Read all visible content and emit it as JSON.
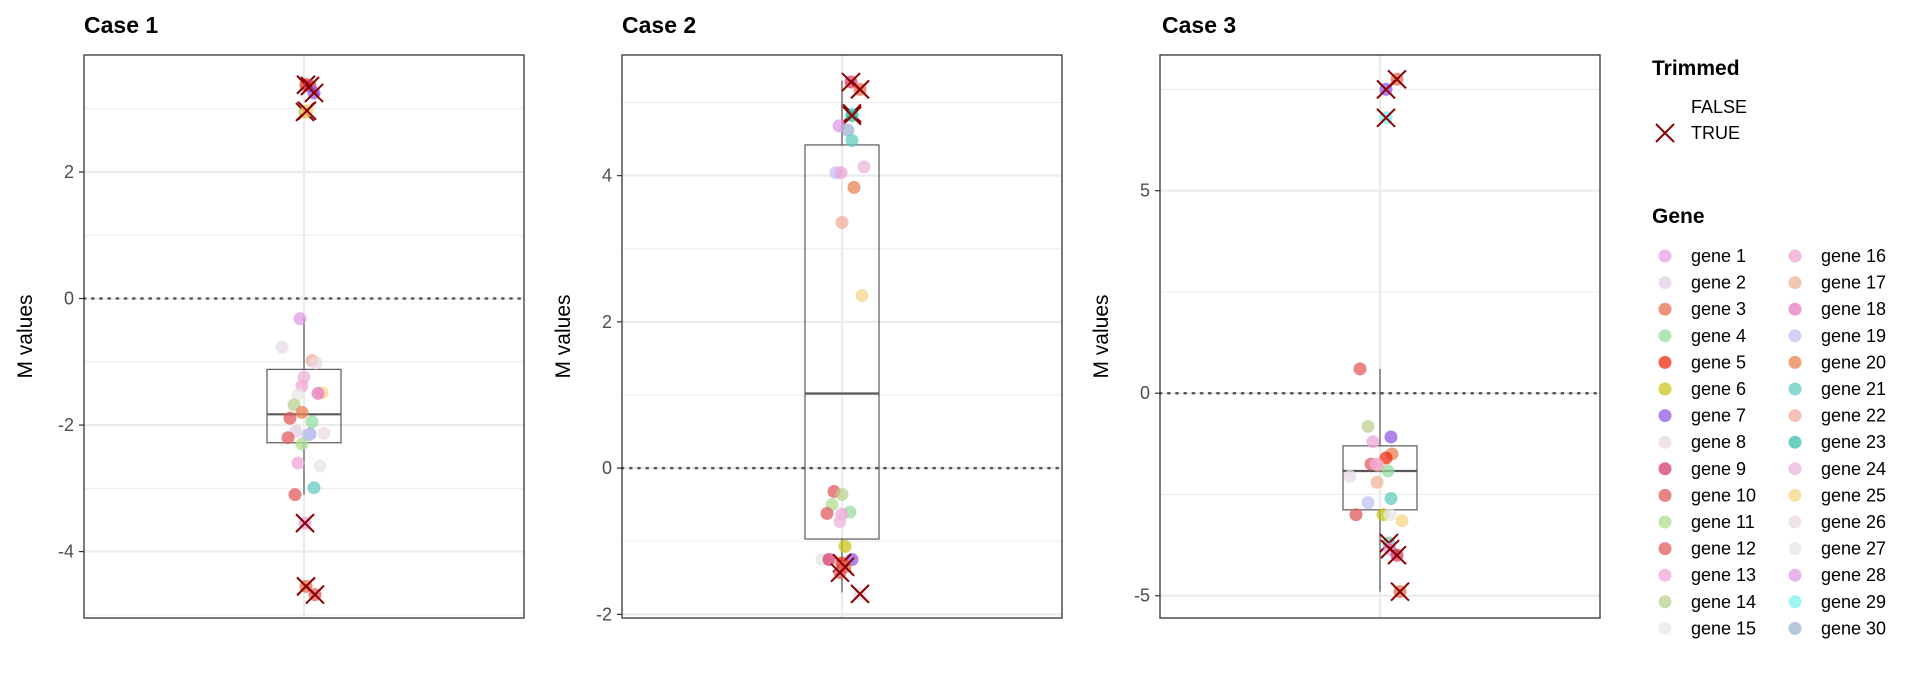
{
  "chart_data": [
    {
      "type": "boxplot",
      "title": "Case 1",
      "ylabel": "M values",
      "ylim": [
        -5.05,
        3.85
      ],
      "yticks": [
        -4,
        -2,
        0,
        2
      ],
      "tick_labels": [
        "-4",
        "-2",
        "0",
        "2"
      ],
      "hline": 0,
      "box": {
        "lower_whisker": -3.1,
        "q1": -2.28,
        "median": -1.83,
        "q3": -1.12,
        "upper_whisker": -0.3
      },
      "points": [
        {
          "gene": "gene 5",
          "jitter": 0.02,
          "y": 3.38,
          "trimmed": true
        },
        {
          "gene": "gene 9",
          "jitter": 0.06,
          "y": 3.36,
          "trimmed": true
        },
        {
          "gene": "gene 7",
          "jitter": 0.1,
          "y": 3.25,
          "trimmed": true
        },
        {
          "gene": "gene 6",
          "jitter": 0.01,
          "y": 2.95,
          "trimmed": true
        },
        {
          "gene": "gene 25",
          "jitter": 0.03,
          "y": 2.97,
          "trimmed": true
        },
        {
          "gene": "gene 28",
          "jitter": -0.04,
          "y": -0.32,
          "trimmed": false
        },
        {
          "gene": "gene 8",
          "jitter": -0.22,
          "y": -0.77,
          "trimmed": false
        },
        {
          "gene": "gene 22",
          "jitter": 0.08,
          "y": -0.98,
          "trimmed": false
        },
        {
          "gene": "gene 26",
          "jitter": 0.12,
          "y": -1.02,
          "trimmed": false
        },
        {
          "gene": "gene 24",
          "jitter": 0.0,
          "y": -1.24,
          "trimmed": false
        },
        {
          "gene": "gene 13",
          "jitter": -0.02,
          "y": -1.38,
          "trimmed": false
        },
        {
          "gene": "gene 25",
          "jitter": 0.18,
          "y": -1.49,
          "trimmed": false
        },
        {
          "gene": "gene 18",
          "jitter": 0.14,
          "y": -1.5,
          "trimmed": false
        },
        {
          "gene": "gene 15",
          "jitter": -0.06,
          "y": -1.52,
          "trimmed": false
        },
        {
          "gene": "gene 14",
          "jitter": -0.1,
          "y": -1.68,
          "trimmed": false
        },
        {
          "gene": "gene 20",
          "jitter": -0.02,
          "y": -1.8,
          "trimmed": false
        },
        {
          "gene": "gene 10",
          "jitter": -0.14,
          "y": -1.89,
          "trimmed": false
        },
        {
          "gene": "gene 4",
          "jitter": 0.08,
          "y": -1.95,
          "trimmed": false
        },
        {
          "gene": "gene 30",
          "jitter": 0.06,
          "y": -2.14,
          "trimmed": false
        },
        {
          "gene": "gene 2",
          "jitter": -0.08,
          "y": -2.1,
          "trimmed": false
        },
        {
          "gene": "gene 26",
          "jitter": 0.2,
          "y": -2.13,
          "trimmed": false
        },
        {
          "gene": "gene 19",
          "jitter": 0.04,
          "y": -2.16,
          "trimmed": false
        },
        {
          "gene": "gene 12",
          "jitter": -0.16,
          "y": -2.2,
          "trimmed": false
        },
        {
          "gene": "gene 11",
          "jitter": -0.02,
          "y": -2.3,
          "trimmed": false
        },
        {
          "gene": "gene 13",
          "jitter": -0.06,
          "y": -2.6,
          "trimmed": false
        },
        {
          "gene": "gene 27",
          "jitter": 0.16,
          "y": -2.65,
          "trimmed": false
        },
        {
          "gene": "gene 21",
          "jitter": 0.1,
          "y": -2.99,
          "trimmed": false
        },
        {
          "gene": "gene 10",
          "jitter": -0.09,
          "y": -3.1,
          "trimmed": false
        },
        {
          "gene": "gene 1",
          "jitter": 0.01,
          "y": -3.55,
          "trimmed": true
        },
        {
          "gene": "gene 3",
          "jitter": 0.02,
          "y": -4.55,
          "trimmed": true
        },
        {
          "gene": "gene 12",
          "jitter": 0.11,
          "y": -4.68,
          "trimmed": true
        }
      ]
    },
    {
      "type": "boxplot",
      "title": "Case 2",
      "ylabel": "M values",
      "ylim": [
        -2.05,
        5.65
      ],
      "yticks": [
        -2,
        0,
        2,
        4
      ],
      "tick_labels": [
        "-2",
        "0",
        "2",
        "4"
      ],
      "hline": 0,
      "box": {
        "lower_whisker": -1.7,
        "q1": -0.97,
        "median": 1.02,
        "q3": 4.42,
        "upper_whisker": 5.3
      },
      "points": [
        {
          "gene": "gene 9",
          "jitter": 0.09,
          "y": 5.28,
          "trimmed": true
        },
        {
          "gene": "gene 3",
          "jitter": 0.18,
          "y": 5.18,
          "trimmed": true
        },
        {
          "gene": "gene 29",
          "jitter": 0.1,
          "y": 4.85,
          "trimmed": true
        },
        {
          "gene": "gene 23",
          "jitter": 0.1,
          "y": 4.82,
          "trimmed": true
        },
        {
          "gene": "gene 28",
          "jitter": -0.03,
          "y": 4.68,
          "trimmed": false
        },
        {
          "gene": "gene 30",
          "jitter": 0.06,
          "y": 4.62,
          "trimmed": false
        },
        {
          "gene": "gene 21",
          "jitter": 0.1,
          "y": 4.48,
          "trimmed": false
        },
        {
          "gene": "gene 24",
          "jitter": 0.22,
          "y": 4.12,
          "trimmed": false
        },
        {
          "gene": "gene 19",
          "jitter": -0.06,
          "y": 4.04,
          "trimmed": false
        },
        {
          "gene": "gene 16",
          "jitter": -0.01,
          "y": 4.04,
          "trimmed": false
        },
        {
          "gene": "gene 20",
          "jitter": 0.12,
          "y": 3.84,
          "trimmed": false
        },
        {
          "gene": "gene 22",
          "jitter": 0.0,
          "y": 3.36,
          "trimmed": false
        },
        {
          "gene": "gene 25",
          "jitter": 0.2,
          "y": 2.36,
          "trimmed": false
        },
        {
          "gene": "gene 10",
          "jitter": -0.08,
          "y": -0.32,
          "trimmed": false
        },
        {
          "gene": "gene 14",
          "jitter": 0.0,
          "y": -0.36,
          "trimmed": false
        },
        {
          "gene": "gene 11",
          "jitter": -0.1,
          "y": -0.5,
          "trimmed": false
        },
        {
          "gene": "gene 12",
          "jitter": -0.15,
          "y": -0.62,
          "trimmed": false
        },
        {
          "gene": "gene 4",
          "jitter": 0.08,
          "y": -0.6,
          "trimmed": false
        },
        {
          "gene": "gene 13",
          "jitter": 0.0,
          "y": -0.63,
          "trimmed": false
        },
        {
          "gene": "gene 24",
          "jitter": -0.02,
          "y": -0.73,
          "trimmed": false
        },
        {
          "gene": "gene 6",
          "jitter": 0.03,
          "y": -1.07,
          "trimmed": false
        },
        {
          "gene": "gene 27",
          "jitter": -0.2,
          "y": -1.25,
          "trimmed": false
        },
        {
          "gene": "gene 9",
          "jitter": -0.13,
          "y": -1.25,
          "trimmed": false
        },
        {
          "gene": "gene 7",
          "jitter": 0.1,
          "y": -1.25,
          "trimmed": false
        },
        {
          "gene": "gene 5",
          "jitter": 0.0,
          "y": -1.3,
          "trimmed": true
        },
        {
          "gene": "gene 3",
          "jitter": 0.03,
          "y": -1.35,
          "trimmed": true
        },
        {
          "gene": "gene 12",
          "jitter": -0.02,
          "y": -1.43,
          "trimmed": true
        },
        {
          "gene": "gene 8",
          "jitter": 0.18,
          "y": -1.72,
          "trimmed": true
        }
      ]
    },
    {
      "type": "boxplot",
      "title": "Case 3",
      "ylabel": "M values",
      "ylim": [
        -5.55,
        8.35
      ],
      "yticks": [
        -5,
        0,
        5
      ],
      "tick_labels": [
        "-5",
        "0",
        "5"
      ],
      "hline": 0,
      "box": {
        "lower_whisker": -4.9,
        "q1": -2.88,
        "median": -1.92,
        "q3": -1.3,
        "upper_whisker": 0.6
      },
      "points": [
        {
          "gene": "gene 3",
          "jitter": 0.17,
          "y": 7.75,
          "trimmed": true
        },
        {
          "gene": "gene 7",
          "jitter": 0.06,
          "y": 7.5,
          "trimmed": true
        },
        {
          "gene": "gene 29",
          "jitter": 0.06,
          "y": 6.8,
          "trimmed": true
        },
        {
          "gene": "gene 10",
          "jitter": -0.2,
          "y": 0.6,
          "trimmed": false
        },
        {
          "gene": "gene 14",
          "jitter": -0.12,
          "y": -0.82,
          "trimmed": false
        },
        {
          "gene": "gene 7",
          "jitter": 0.11,
          "y": -1.08,
          "trimmed": false
        },
        {
          "gene": "gene 16",
          "jitter": -0.07,
          "y": -1.2,
          "trimmed": false
        },
        {
          "gene": "gene 20",
          "jitter": 0.12,
          "y": -1.5,
          "trimmed": false
        },
        {
          "gene": "gene 5",
          "jitter": 0.06,
          "y": -1.6,
          "trimmed": false
        },
        {
          "gene": "gene 12",
          "jitter": -0.09,
          "y": -1.75,
          "trimmed": false
        },
        {
          "gene": "gene 22",
          "jitter": -0.02,
          "y": -1.78,
          "trimmed": false
        },
        {
          "gene": "gene 13",
          "jitter": -0.04,
          "y": -1.75,
          "trimmed": false
        },
        {
          "gene": "gene 4",
          "jitter": 0.08,
          "y": -1.92,
          "trimmed": false
        },
        {
          "gene": "gene 8",
          "jitter": -0.3,
          "y": -2.05,
          "trimmed": false
        },
        {
          "gene": "gene 17",
          "jitter": -0.03,
          "y": -2.2,
          "trimmed": false
        },
        {
          "gene": "gene 21",
          "jitter": 0.11,
          "y": -2.6,
          "trimmed": false
        },
        {
          "gene": "gene 19",
          "jitter": -0.12,
          "y": -2.7,
          "trimmed": false
        },
        {
          "gene": "gene 10",
          "jitter": -0.24,
          "y": -3.0,
          "trimmed": false
        },
        {
          "gene": "gene 6",
          "jitter": 0.03,
          "y": -3.0,
          "trimmed": false
        },
        {
          "gene": "gene 27",
          "jitter": 0.1,
          "y": -3.0,
          "trimmed": false
        },
        {
          "gene": "gene 25",
          "jitter": 0.22,
          "y": -3.15,
          "trimmed": false
        },
        {
          "gene": "gene 21",
          "jitter": 0.09,
          "y": -3.7,
          "trimmed": true
        },
        {
          "gene": "gene 1",
          "jitter": 0.1,
          "y": -3.85,
          "trimmed": true
        },
        {
          "gene": "gene 9",
          "jitter": 0.17,
          "y": -4.0,
          "trimmed": true
        },
        {
          "gene": "gene 3",
          "jitter": 0.2,
          "y": -4.9,
          "trimmed": true
        }
      ]
    }
  ],
  "legend": {
    "trimmed_title": "Trimmed",
    "trimmed_items": [
      {
        "label": "FALSE",
        "marker": "none"
      },
      {
        "label": "TRUE",
        "marker": "cross"
      }
    ],
    "gene_title": "Gene",
    "genes": [
      {
        "label": "gene 1",
        "color": "#e7a1e6"
      },
      {
        "label": "gene 2",
        "color": "#e4cfe3"
      },
      {
        "label": "gene 3",
        "color": "#e6704f"
      },
      {
        "label": "gene 4",
        "color": "#99dca3"
      },
      {
        "label": "gene 5",
        "color": "#f02d14"
      },
      {
        "label": "gene 6",
        "color": "#c9c61c"
      },
      {
        "label": "gene 7",
        "color": "#9159e8"
      },
      {
        "label": "gene 8",
        "color": "#ead9e4"
      },
      {
        "label": "gene 9",
        "color": "#d53d6b"
      },
      {
        "label": "gene 10",
        "color": "#e15b5b"
      },
      {
        "label": "gene 11",
        "color": "#b0dd92"
      },
      {
        "label": "gene 12",
        "color": "#e15c5e"
      },
      {
        "label": "gene 13",
        "color": "#f1a7d9"
      },
      {
        "label": "gene 14",
        "color": "#b9d18e"
      },
      {
        "label": "gene 15",
        "color": "#e9e8e9"
      },
      {
        "label": "gene 16",
        "color": "#eba7d7"
      },
      {
        "label": "gene 17",
        "color": "#eeb497"
      },
      {
        "label": "gene 18",
        "color": "#e879c4"
      },
      {
        "label": "gene 19",
        "color": "#c2c0f4"
      },
      {
        "label": "gene 20",
        "color": "#ea8253"
      },
      {
        "label": "gene 21",
        "color": "#62ccc2"
      },
      {
        "label": "gene 22",
        "color": "#f0ad9e"
      },
      {
        "label": "gene 23",
        "color": "#35c2a9"
      },
      {
        "label": "gene 24",
        "color": "#ecb6db"
      },
      {
        "label": "gene 25",
        "color": "#f6d68a"
      },
      {
        "label": "gene 26",
        "color": "#ebd9e2"
      },
      {
        "label": "gene 27",
        "color": "#e6e5e6"
      },
      {
        "label": "gene 28",
        "color": "#e29be6"
      },
      {
        "label": "gene 29",
        "color": "#7eefef"
      },
      {
        "label": "gene 30",
        "color": "#9eb3d2"
      }
    ]
  },
  "colors": {
    "trimmed_cross": "#8b0000",
    "grid": "#ebebeb",
    "panel_border": "#333333",
    "box_line": "#595959"
  }
}
